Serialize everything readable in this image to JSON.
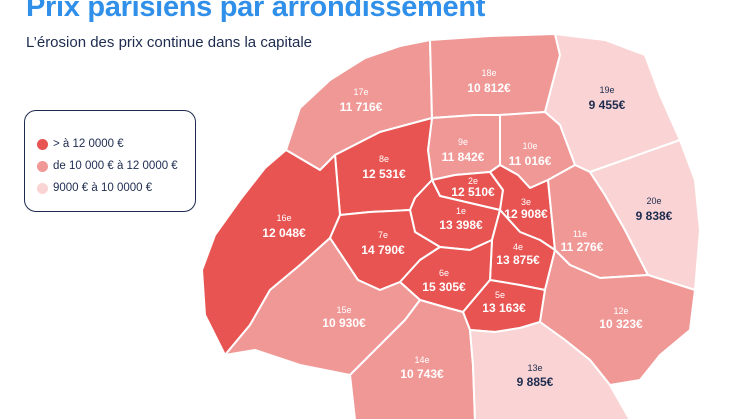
{
  "title": "Prix parisiens par arrondissement",
  "subtitle": "L’érosion des prix continue dans la capitale",
  "colors": {
    "high": "#e75452",
    "mid": "#f09896",
    "low": "#fad4d4",
    "title": "#2f8fe9",
    "text_dark": "#1d2b4f"
  },
  "legend": [
    {
      "label": "> à 12 0000 €",
      "tier": "high"
    },
    {
      "label": "de 10 000 € à 12 0000 €",
      "tier": "mid"
    },
    {
      "label": "9000 € à 10 0000 €",
      "tier": "low"
    }
  ],
  "arrondissements": [
    {
      "num": "1e",
      "price": "13 398€",
      "tier": "high"
    },
    {
      "num": "2e",
      "price": "12 510€",
      "tier": "high"
    },
    {
      "num": "3e",
      "price": "12 908€",
      "tier": "high"
    },
    {
      "num": "4e",
      "price": "13 875€",
      "tier": "high"
    },
    {
      "num": "5e",
      "price": "13 163€",
      "tier": "high"
    },
    {
      "num": "6e",
      "price": "15 305€",
      "tier": "high"
    },
    {
      "num": "7e",
      "price": "14 790€",
      "tier": "high"
    },
    {
      "num": "8e",
      "price": "12 531€",
      "tier": "high"
    },
    {
      "num": "9e",
      "price": "11 842€",
      "tier": "mid"
    },
    {
      "num": "10e",
      "price": "11 016€",
      "tier": "mid"
    },
    {
      "num": "11e",
      "price": "11 276€",
      "tier": "mid"
    },
    {
      "num": "12e",
      "price": "10 323€",
      "tier": "mid"
    },
    {
      "num": "13e",
      "price": "9 885€",
      "tier": "low"
    },
    {
      "num": "14e",
      "price": "10 743€",
      "tier": "mid"
    },
    {
      "num": "15e",
      "price": "10 930€",
      "tier": "mid"
    },
    {
      "num": "16e",
      "price": "12 048€",
      "tier": "high"
    },
    {
      "num": "17e",
      "price": "11 716€",
      "tier": "mid"
    },
    {
      "num": "18e",
      "price": "10 812€",
      "tier": "mid"
    },
    {
      "num": "19e",
      "price": "9 455€",
      "tier": "low"
    },
    {
      "num": "20e",
      "price": "9 838€",
      "tier": "low"
    }
  ]
}
